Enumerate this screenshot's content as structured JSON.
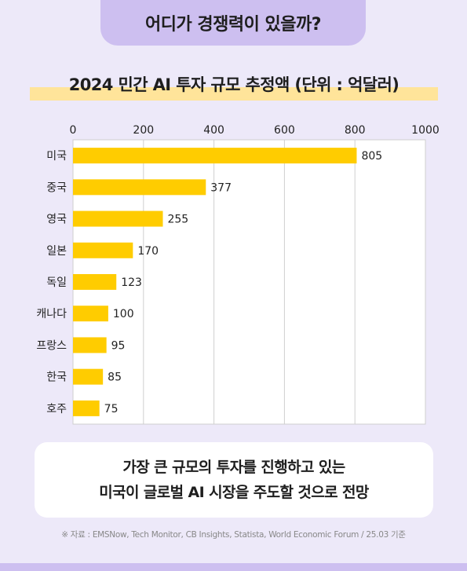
{
  "header": {
    "title": "어디가 경쟁력이 있을까?"
  },
  "chart_data": {
    "type": "bar",
    "orientation": "horizontal",
    "title": "2024 민간 AI 투자 규모 추정액 (단위 : 억달러)",
    "categories": [
      "미국",
      "중국",
      "영국",
      "일본",
      "독일",
      "캐나다",
      "프랑스",
      "한국",
      "호주"
    ],
    "values": [
      805,
      377,
      255,
      170,
      123,
      100,
      95,
      85,
      75
    ],
    "xlim": [
      0,
      1000
    ],
    "xticks": [
      0,
      200,
      400,
      600,
      800,
      1000
    ],
    "x_axis_position": "top",
    "grid": true,
    "bar_color": "#ffcc00"
  },
  "message": {
    "line1": "가장 큰 규모의 투자를 진행하고 있는",
    "line2": "미국이 글로벌 AI 시장을 주도할 것으로 전망"
  },
  "source": "※ 자료 : EMSNow, Tech Monitor, CB Insights, Statista, World Economic Forum / 25.03 기준"
}
